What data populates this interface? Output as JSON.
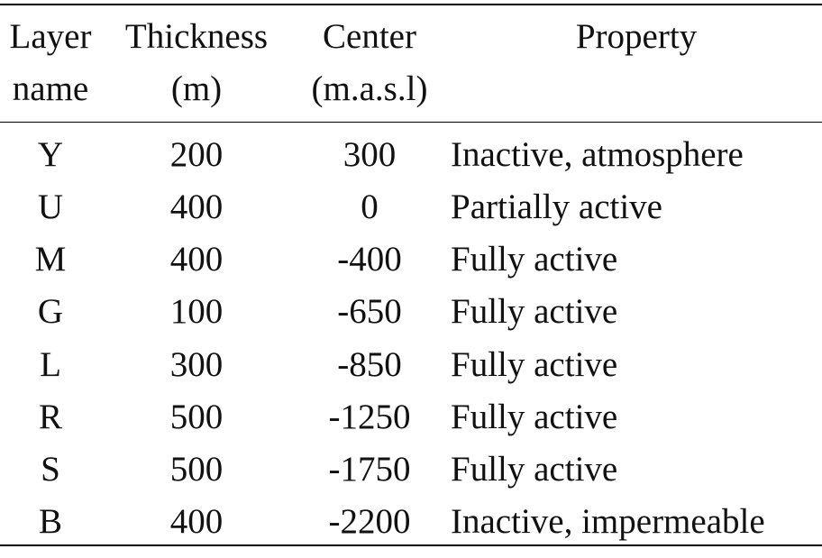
{
  "table": {
    "headers": [
      [
        "Layer",
        "name"
      ],
      [
        "Thickness",
        "(m)"
      ],
      [
        "Center",
        "(m.a.s.l)"
      ],
      [
        "Property",
        ""
      ]
    ],
    "rows": [
      [
        "Y",
        "200",
        "300",
        "Inactive, atmosphere"
      ],
      [
        "U",
        "400",
        "0",
        "Partially active"
      ],
      [
        "M",
        "400",
        "-400",
        "Fully active"
      ],
      [
        "G",
        "100",
        "-650",
        "Fully active"
      ],
      [
        "L",
        "300",
        "-850",
        "Fully active"
      ],
      [
        "R",
        "500",
        "-1250",
        "Fully active"
      ],
      [
        "S",
        "500",
        "-1750",
        "Fully active"
      ],
      [
        "B",
        "400",
        "-2200",
        "Inactive, impermeable"
      ]
    ]
  }
}
